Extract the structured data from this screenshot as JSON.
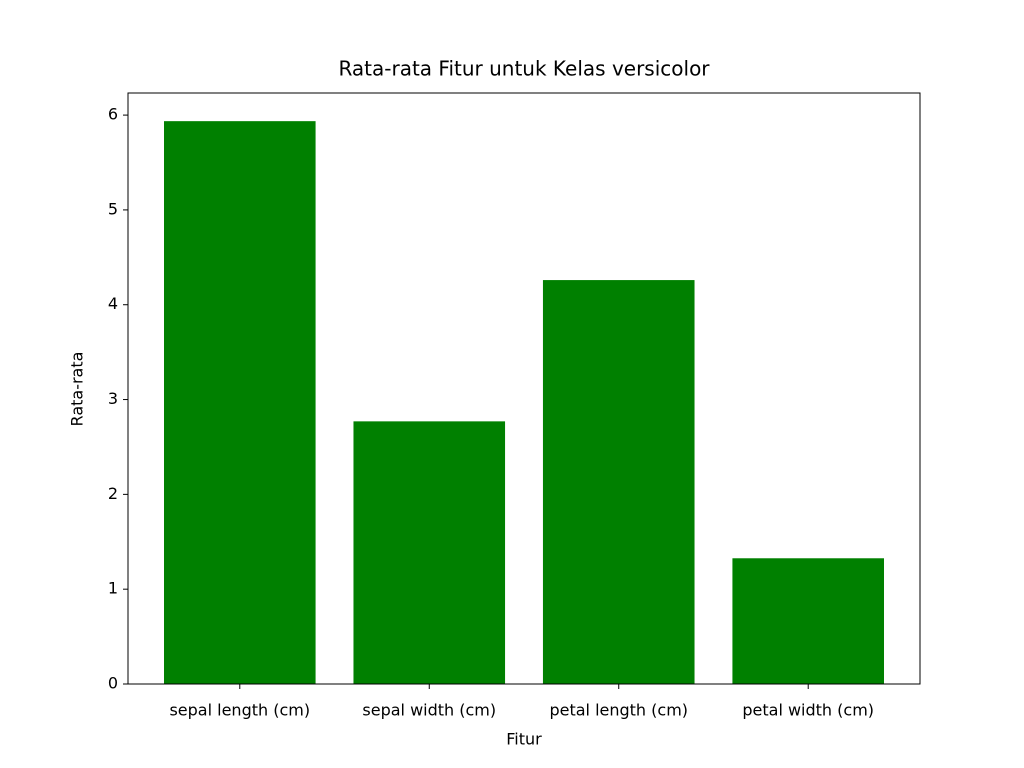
{
  "chart_data": {
    "type": "bar",
    "title": "Rata-rata Fitur untuk Kelas versicolor",
    "x_label": "Fitur",
    "y_label": "Rata-rata",
    "categories": [
      "sepal length (cm)",
      "sepal width (cm)",
      "petal length (cm)",
      "petal width (cm)"
    ],
    "values": [
      5.936,
      2.77,
      4.26,
      1.326
    ],
    "color": "#008000",
    "ylim": [
      0,
      6.233
    ],
    "yticks": [
      0,
      1,
      2,
      3,
      4,
      5,
      6
    ],
    "grid": false
  }
}
